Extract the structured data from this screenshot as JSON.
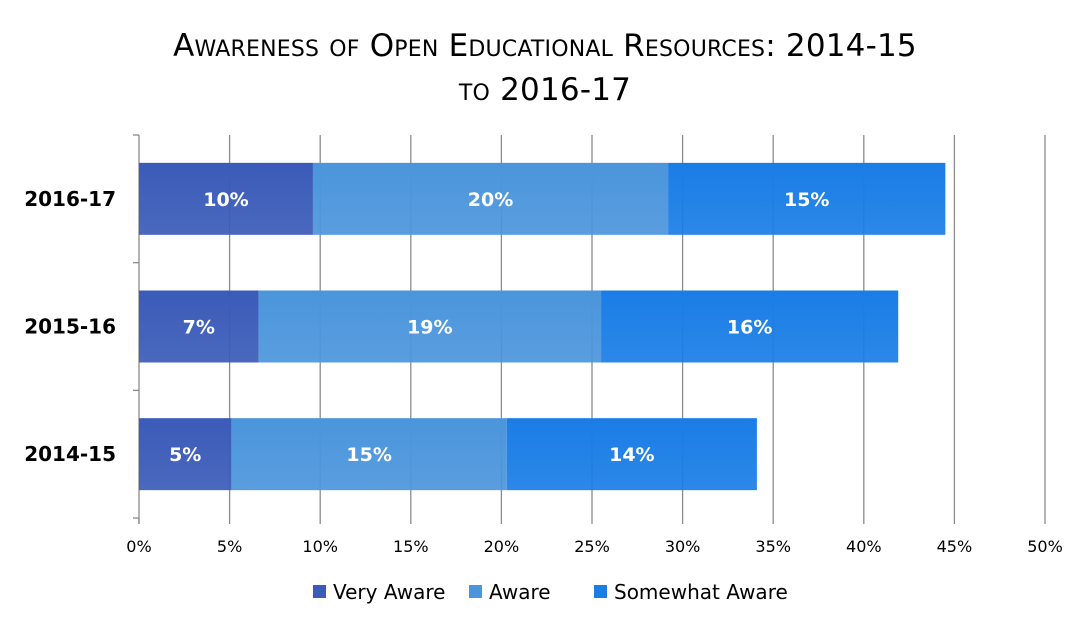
{
  "chart_data": {
    "type": "bar",
    "orientation": "horizontal",
    "stacked": true,
    "title_line1": "Awareness of Open Educational Resources: 2014-15",
    "title_line2": "to 2016-17",
    "categories": [
      "2016-17",
      "2015-16",
      "2014-15"
    ],
    "series": [
      {
        "name": "Very Aware",
        "values": [
          9.6,
          6.6,
          5.1
        ],
        "labels": [
          "10%",
          "7%",
          "5%"
        ],
        "color": "#3A5BB8"
      },
      {
        "name": "Aware",
        "values": [
          19.6,
          18.9,
          15.2
        ],
        "labels": [
          "20%",
          "19%",
          "15%"
        ],
        "color": "#4B95DC"
      },
      {
        "name": "Somewhat Aware",
        "values": [
          15.3,
          16.4,
          13.8
        ],
        "labels": [
          "15%",
          "16%",
          "14%"
        ],
        "color": "#1A7DE6"
      }
    ],
    "xlim": [
      0,
      50
    ],
    "xticks": [
      0,
      5,
      10,
      15,
      20,
      25,
      30,
      35,
      40,
      45,
      50
    ],
    "xtick_labels": [
      "0%",
      "5%",
      "10%",
      "15%",
      "20%",
      "25%",
      "30%",
      "35%",
      "40%",
      "45%",
      "50%"
    ],
    "grid": true,
    "legend_position": "bottom"
  }
}
